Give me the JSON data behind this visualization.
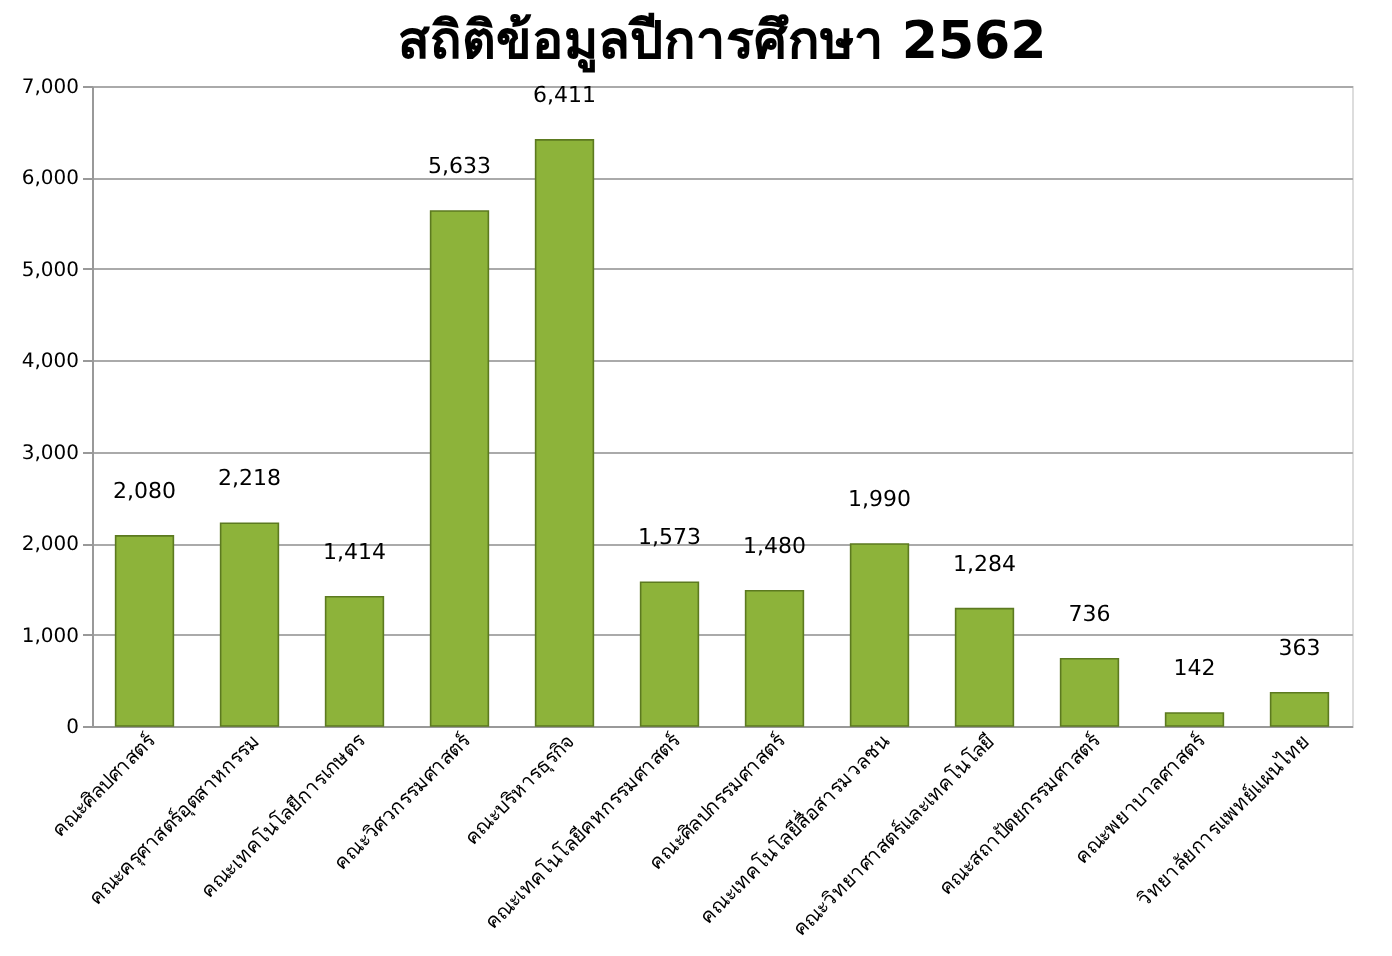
{
  "chart_data": {
    "type": "bar",
    "title": "สถิติข้อมูลปีการศึกษา 2562",
    "categories": [
      "คณะศิลปศาสตร์",
      "คณะครุศาสตร์อุตสาหกรรม",
      "คณะเทคโนโลยีการเกษตร",
      "คณะวิศวกรรมศาสตร์",
      "คณะบริหารธุรกิจ",
      "คณะเทคโนโลยีคหกรรมศาสตร์",
      "คณะศิลปกรรมศาสตร์",
      "คณะเทคโนโลยีสื่อสารมวลชน",
      "คณะวิทยาศาสตร์และเทคโนโลยี",
      "คณะสถาปัตยกรรมศาสตร์",
      "คณะพยาบาลศาสตร์",
      "วิทยาลัยการแพทย์แผนไทย"
    ],
    "values": [
      2080,
      2218,
      1414,
      5633,
      6411,
      1573,
      1480,
      1990,
      1284,
      736,
      142,
      363
    ],
    "color": "#8db33a",
    "ylim": [
      0,
      7000
    ],
    "yticks": [
      {
        "value": 0,
        "label": "0"
      },
      {
        "value": 1000,
        "label": "1,000"
      },
      {
        "value": 2000,
        "label": "2,000"
      },
      {
        "value": 3000,
        "label": "3,000"
      },
      {
        "value": 4000,
        "label": "4,000"
      },
      {
        "value": 5000,
        "label": "5,000"
      },
      {
        "value": 6000,
        "label": "6,000"
      },
      {
        "value": 7000,
        "label": "7,000"
      }
    ],
    "value_labels": [
      "2,080",
      "2,218",
      "1,414",
      "5,633",
      "6,411",
      "1,573",
      "1,480",
      "1,990",
      "1,284",
      "736",
      "142",
      "363"
    ],
    "grid": "y"
  }
}
